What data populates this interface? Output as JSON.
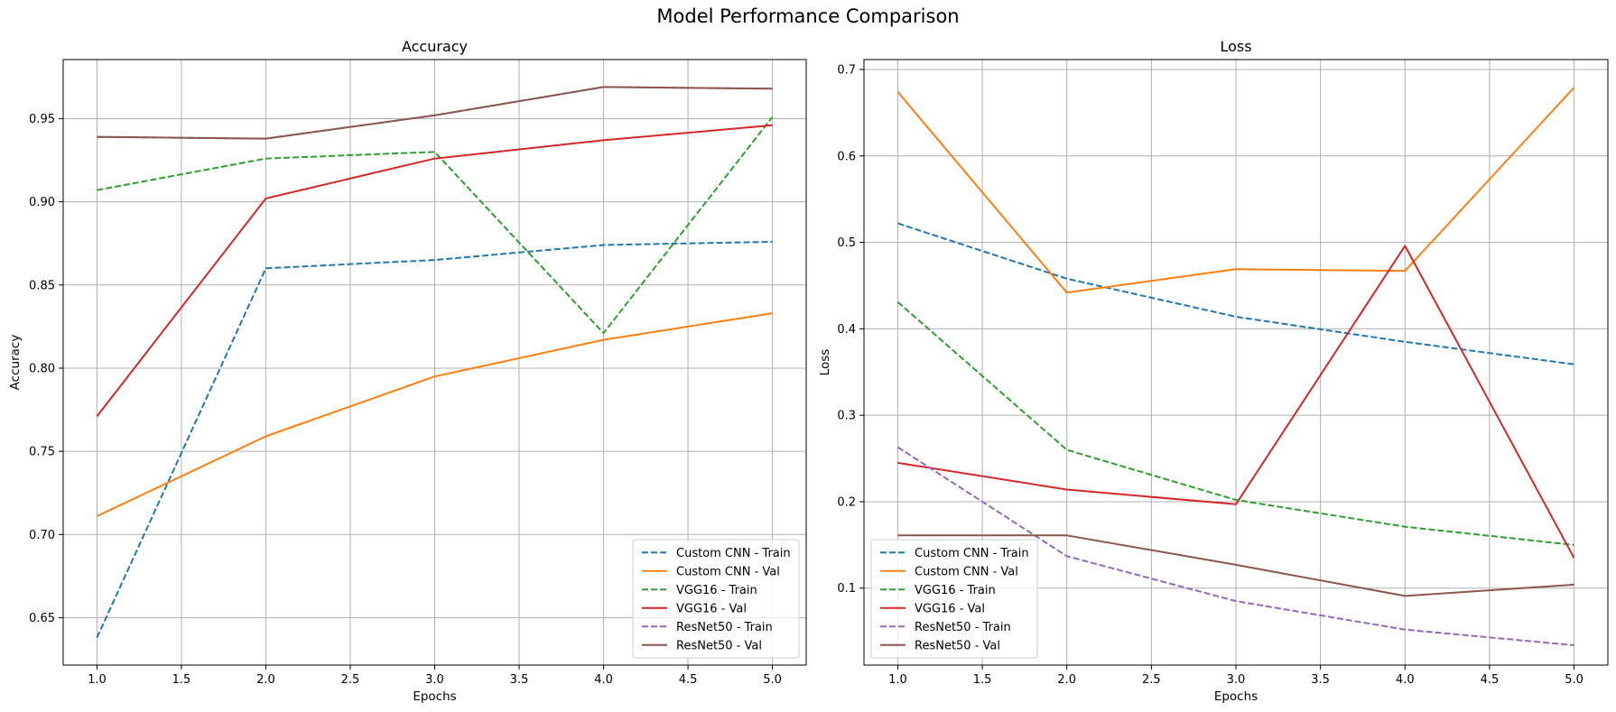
{
  "figure": {
    "title": "Model Performance Comparison"
  },
  "chart_data": [
    {
      "type": "line",
      "title": "Accuracy",
      "xlabel": "Epochs",
      "ylabel": "Accuracy",
      "xlim": [
        0.8,
        5.2
      ],
      "ylim": [
        0.6215,
        0.9855
      ],
      "xticks": [
        1.0,
        1.5,
        2.0,
        2.5,
        3.0,
        3.5,
        4.0,
        4.5,
        5.0
      ],
      "xtick_labels": [
        "1.0",
        "1.5",
        "2.0",
        "2.5",
        "3.0",
        "3.5",
        "4.0",
        "4.5",
        "5.0"
      ],
      "yticks": [
        0.65,
        0.7,
        0.75,
        0.8,
        0.85,
        0.9,
        0.95
      ],
      "ytick_labels": [
        "0.65",
        "0.70",
        "0.75",
        "0.80",
        "0.85",
        "0.90",
        "0.95"
      ],
      "grid": true,
      "legend_position": "lower-right",
      "x": [
        1,
        2,
        3,
        4,
        5
      ],
      "series": [
        {
          "name": "Custom CNN - Train",
          "color": "#1f77b4",
          "dash": "dashed",
          "values": [
            0.638,
            0.86,
            0.865,
            0.874,
            0.876
          ]
        },
        {
          "name": "Custom CNN - Val",
          "color": "#ff7f0e",
          "dash": "solid",
          "values": [
            0.711,
            0.759,
            0.795,
            0.817,
            0.833
          ]
        },
        {
          "name": "VGG16 - Train",
          "color": "#2ca02c",
          "dash": "dashed",
          "values": [
            0.907,
            0.926,
            0.93,
            0.821,
            0.951
          ]
        },
        {
          "name": "VGG16 - Val",
          "color": "#d62728",
          "dash": "solid",
          "values": [
            0.771,
            0.902,
            0.926,
            0.937,
            0.946
          ]
        },
        {
          "name": "ResNet50 - Train",
          "color": "#9467bd",
          "dash": "dashed",
          "values": [
            0.939,
            0.938,
            0.952,
            0.969,
            0.968
          ]
        },
        {
          "name": "ResNet50 - Val",
          "color": "#8c564b",
          "dash": "solid",
          "values": [
            0.939,
            0.938,
            0.952,
            0.969,
            0.968
          ]
        }
      ]
    },
    {
      "type": "line",
      "title": "Loss",
      "xlabel": "Epochs",
      "ylabel": "Loss",
      "xlim": [
        0.8,
        5.2
      ],
      "ylim": [
        0.011,
        0.7115
      ],
      "xticks": [
        1.0,
        1.5,
        2.0,
        2.5,
        3.0,
        3.5,
        4.0,
        4.5,
        5.0
      ],
      "xtick_labels": [
        "1.0",
        "1.5",
        "2.0",
        "2.5",
        "3.0",
        "3.5",
        "4.0",
        "4.5",
        "5.0"
      ],
      "yticks": [
        0.1,
        0.2,
        0.3,
        0.4,
        0.5,
        0.6,
        0.7
      ],
      "ytick_labels": [
        "0.1",
        "0.2",
        "0.3",
        "0.4",
        "0.5",
        "0.6",
        "0.7"
      ],
      "grid": true,
      "legend_position": "lower-left",
      "x": [
        1,
        2,
        3,
        4,
        5
      ],
      "series": [
        {
          "name": "Custom CNN - Train",
          "color": "#1f77b4",
          "dash": "dashed",
          "values": [
            0.522,
            0.458,
            0.414,
            0.385,
            0.359
          ]
        },
        {
          "name": "Custom CNN - Val",
          "color": "#ff7f0e",
          "dash": "solid",
          "values": [
            0.674,
            0.442,
            0.469,
            0.467,
            0.679
          ]
        },
        {
          "name": "VGG16 - Train",
          "color": "#2ca02c",
          "dash": "dashed",
          "values": [
            0.431,
            0.26,
            0.202,
            0.171,
            0.15
          ]
        },
        {
          "name": "VGG16 - Val",
          "color": "#d62728",
          "dash": "solid",
          "values": [
            0.245,
            0.214,
            0.197,
            0.496,
            0.135
          ]
        },
        {
          "name": "ResNet50 - Train",
          "color": "#9467bd",
          "dash": "dashed",
          "values": [
            0.263,
            0.137,
            0.085,
            0.052,
            0.034
          ]
        },
        {
          "name": "ResNet50 - Val",
          "color": "#8c564b",
          "dash": "solid",
          "values": [
            0.161,
            0.161,
            0.127,
            0.091,
            0.104
          ]
        }
      ]
    }
  ]
}
